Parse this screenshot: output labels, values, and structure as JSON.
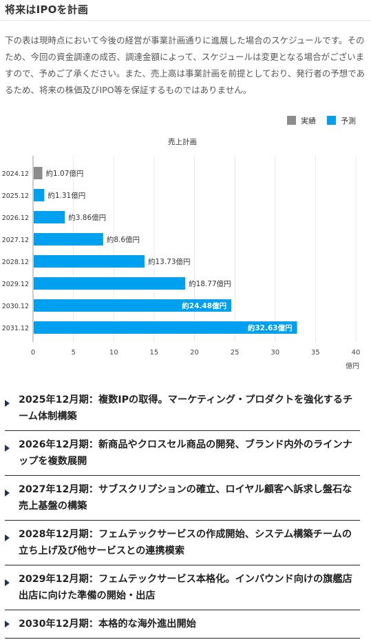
{
  "page": {
    "title": "将来はIPOを計画",
    "disclaimer": "下の表は現時点において今後の経営が事業計画通りに進展した場合のスケジュールです。そのため、今回の資金調達の成否、調達金額によって、スケジュールは変更となる場合がございますので、予めご了承ください。また、売上高は事業計画を前提としており、発行者の予想であるため、将来の株価及びIPO等を保証するものではありません。"
  },
  "chart_data": {
    "type": "bar",
    "orientation": "horizontal",
    "title": "売上計画",
    "x_unit": "億円",
    "xlim": [
      0,
      40
    ],
    "x_ticks": [
      0,
      5,
      10,
      15,
      20,
      25,
      30,
      35,
      40
    ],
    "grid": true,
    "legend_position": "top-right",
    "legend": [
      {
        "name": "実績",
        "color": "#8c8c8c"
      },
      {
        "name": "予測",
        "color": "#00a0f0"
      }
    ],
    "categories": [
      "2024.12",
      "2025.12",
      "2026.12",
      "2027.12",
      "2028.12",
      "2029.12",
      "2030.12",
      "2031.12"
    ],
    "values": [
      1.07,
      1.31,
      3.86,
      8.6,
      13.73,
      18.77,
      24.48,
      32.63
    ],
    "kinds": [
      "実績",
      "予測",
      "予測",
      "予測",
      "予測",
      "予測",
      "予測",
      "予測"
    ],
    "data_labels": [
      "約1.07億円",
      "約1.31億円",
      "約3.86億円",
      "約8.6億円",
      "約13.73億円",
      "約18.77億円",
      "約24.48億円",
      "約32.63億円"
    ],
    "label_inside": [
      false,
      false,
      false,
      false,
      false,
      false,
      true,
      true
    ]
  },
  "milestones": [
    "2025年12月期：複数IPの取得。マーケティング・プロダクトを強化するチーム体制構築",
    "2026年12月期：新商品やクロスセル商品の開発、ブランド内外のラインナップを複数展開",
    "2027年12月期：サブスクリプションの確立、ロイヤル顧客へ訴求し盤石な売上基盤の構築",
    "2028年12月期：フェムテックサービスの作成開始、システム構築チームの立ち上げ及び他サービスとの連携模索",
    "2029年12月期：フェムテックサービス本格化。インバウンド向けの旗艦店出店に向けた準備の開始・出店",
    "2030年12月期：本格的な海外進出開始"
  ]
}
